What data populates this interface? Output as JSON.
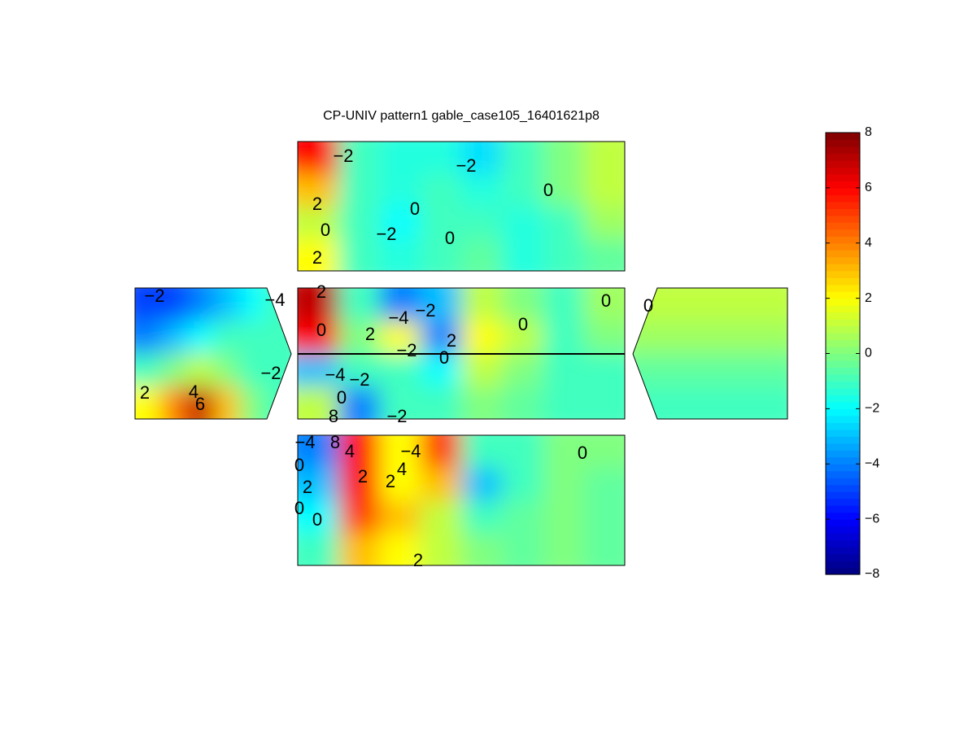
{
  "chart_data": {
    "type": "contour",
    "title": "CP-UNIV pattern1 gable_case105_16401621p8",
    "colormap": "jet",
    "clim": [
      -8,
      8
    ],
    "colorbar_ticks": [
      -8,
      -6,
      -4,
      -2,
      0,
      2,
      4,
      6,
      8
    ],
    "panels": [
      {
        "grid": [
          [
            6,
            -1,
            -1.5,
            -1.5,
            -2.5,
            -1,
            0,
            1
          ],
          [
            3,
            -1,
            -1.5,
            -1,
            -1.5,
            -1,
            0,
            1
          ],
          [
            1,
            -1,
            -2,
            -1,
            -1,
            -1.5,
            -1,
            0.5
          ],
          [
            2,
            -1,
            -1.5,
            -1,
            -0.5,
            -1.5,
            -1,
            -0.5
          ]
        ],
        "contour_labels": [
          -2,
          -2,
          0,
          2,
          0,
          0,
          -2,
          0,
          2
        ]
      },
      {
        "grid": [
          [
            7,
            -1,
            -4,
            -3,
            1,
            0,
            -1,
            0.5
          ],
          [
            6,
            0,
            2,
            -4,
            2,
            1,
            -1,
            0
          ],
          [
            -3,
            -1,
            -1,
            -2,
            1,
            0,
            -1,
            -1
          ],
          [
            1,
            -4,
            -1,
            -1,
            0,
            -0.5,
            -1,
            -1
          ]
        ],
        "contour_labels": [
          2,
          -4,
          -2,
          0,
          0,
          0,
          2,
          2,
          -2,
          0,
          -4,
          -2,
          0,
          -2,
          8
        ]
      },
      {
        "grid": [
          [
            -5,
            -5,
            -4,
            -3,
            -2,
            -1
          ],
          [
            -4,
            -3,
            -2,
            -1,
            -1,
            -1
          ],
          [
            -1,
            0,
            1,
            0,
            -1,
            -1
          ],
          [
            2,
            4,
            7,
            3,
            0,
            -1
          ]
        ],
        "contour_labels": [
          -2,
          -4,
          2,
          4,
          6,
          -2
        ]
      },
      {
        "grid": [
          [
            1,
            1,
            1,
            1,
            1,
            1
          ],
          [
            0.5,
            0.5,
            0.5,
            0.5,
            0.5,
            0.5
          ],
          [
            -0.5,
            -0.5,
            -0.5,
            -0.5,
            -0.5,
            -0.5
          ],
          [
            -1,
            -1,
            -1,
            -1,
            -1,
            -1
          ]
        ],
        "contour_labels": [
          0
        ]
      },
      {
        "grid": [
          [
            -4,
            6,
            2,
            5,
            -1,
            -1,
            0,
            0
          ],
          [
            -3,
            6,
            2,
            3,
            -3,
            -1,
            0,
            -0.5
          ],
          [
            -2,
            5,
            3,
            1,
            -1,
            -0.5,
            0,
            -0.5
          ],
          [
            -1,
            3,
            2,
            1,
            0,
            -0.5,
            0,
            -0.5
          ]
        ],
        "contour_labels": [
          -4,
          8,
          4,
          -4,
          0,
          0,
          2,
          2,
          4,
          2,
          0,
          0,
          2
        ]
      }
    ]
  }
}
